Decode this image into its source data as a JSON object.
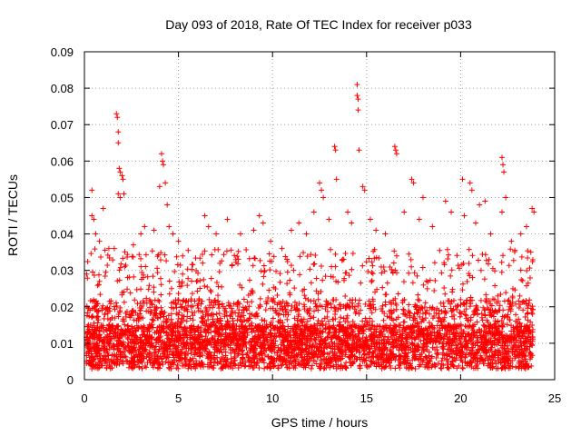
{
  "chart_data": {
    "type": "scatter",
    "title": "Day 093 of 2018, Rate Of TEC Index for receiver p033",
    "xlabel": "GPS time / hours",
    "ylabel": "ROTI / TECUs",
    "xlim": [
      0,
      25
    ],
    "ylim": [
      0,
      0.09
    ],
    "xticks": [
      0,
      5,
      10,
      15,
      20,
      25
    ],
    "xtick_labels": [
      "0",
      "5",
      "10",
      "15",
      "20",
      "25"
    ],
    "yticks": [
      0,
      0.01,
      0.02,
      0.03,
      0.04,
      0.05,
      0.06,
      0.07,
      0.08,
      0.09
    ],
    "ytick_labels": [
      "0",
      "0.01",
      "0.02",
      "0.03",
      "0.04",
      "0.05",
      "0.06",
      "0.07",
      "0.08",
      "0.09"
    ],
    "grid": true,
    "marker": "plus",
    "color": "#ff0000",
    "points": [
      [
        0.4,
        0.052
      ],
      [
        0.4,
        0.045
      ],
      [
        0.5,
        0.044
      ],
      [
        1.0,
        0.047
      ],
      [
        1.7,
        0.073
      ],
      [
        1.75,
        0.072
      ],
      [
        1.8,
        0.068
      ],
      [
        1.8,
        0.065
      ],
      [
        1.85,
        0.058
      ],
      [
        1.9,
        0.057
      ],
      [
        2.0,
        0.056
      ],
      [
        2.05,
        0.055
      ],
      [
        1.8,
        0.051
      ],
      [
        1.9,
        0.05
      ],
      [
        2.1,
        0.051
      ],
      [
        4.1,
        0.062
      ],
      [
        4.15,
        0.06
      ],
      [
        4.2,
        0.059
      ],
      [
        4.0,
        0.053
      ],
      [
        4.3,
        0.054
      ],
      [
        4.4,
        0.048
      ],
      [
        4.5,
        0.042
      ],
      [
        12.5,
        0.054
      ],
      [
        12.6,
        0.052
      ],
      [
        12.7,
        0.05
      ],
      [
        13.3,
        0.064
      ],
      [
        13.35,
        0.063
      ],
      [
        13.4,
        0.055
      ],
      [
        14.5,
        0.081
      ],
      [
        14.5,
        0.078
      ],
      [
        14.55,
        0.077
      ],
      [
        14.55,
        0.074
      ],
      [
        14.6,
        0.063
      ],
      [
        14.8,
        0.053
      ],
      [
        14.9,
        0.052
      ],
      [
        16.5,
        0.064
      ],
      [
        16.55,
        0.063
      ],
      [
        16.6,
        0.062
      ],
      [
        17.4,
        0.055
      ],
      [
        17.5,
        0.054
      ],
      [
        18.0,
        0.05
      ],
      [
        19.2,
        0.049
      ],
      [
        20.1,
        0.055
      ],
      [
        20.5,
        0.054
      ],
      [
        20.6,
        0.052
      ],
      [
        21.0,
        0.048
      ],
      [
        21.3,
        0.049
      ],
      [
        22.2,
        0.061
      ],
      [
        22.25,
        0.059
      ],
      [
        22.3,
        0.057
      ],
      [
        22.2,
        0.046
      ],
      [
        22.4,
        0.05
      ],
      [
        23.8,
        0.047
      ],
      [
        23.9,
        0.046
      ],
      [
        0.6,
        0.04
      ],
      [
        0.8,
        0.038
      ],
      [
        1.3,
        0.036
      ],
      [
        2.6,
        0.037
      ],
      [
        3.0,
        0.04
      ],
      [
        3.2,
        0.042
      ],
      [
        3.7,
        0.041
      ],
      [
        4.7,
        0.04
      ],
      [
        5.0,
        0.038
      ],
      [
        6.4,
        0.045
      ],
      [
        6.6,
        0.042
      ],
      [
        7.0,
        0.04
      ],
      [
        7.6,
        0.044
      ],
      [
        8.3,
        0.04
      ],
      [
        9.0,
        0.041
      ],
      [
        9.3,
        0.045
      ],
      [
        9.5,
        0.043
      ],
      [
        9.9,
        0.038
      ],
      [
        10.5,
        0.036
      ],
      [
        11.0,
        0.041
      ],
      [
        11.4,
        0.043
      ],
      [
        11.8,
        0.04
      ],
      [
        12.2,
        0.046
      ],
      [
        13.0,
        0.044
      ],
      [
        14.0,
        0.046
      ],
      [
        14.2,
        0.043
      ],
      [
        15.2,
        0.044
      ],
      [
        15.5,
        0.041
      ],
      [
        16.0,
        0.04
      ],
      [
        17.0,
        0.046
      ],
      [
        17.8,
        0.044
      ],
      [
        18.5,
        0.042
      ],
      [
        19.5,
        0.046
      ],
      [
        20.2,
        0.045
      ],
      [
        20.8,
        0.043
      ],
      [
        21.6,
        0.04
      ],
      [
        22.7,
        0.038
      ],
      [
        23.2,
        0.04
      ],
      [
        23.5,
        0.042
      ]
    ],
    "generated_cloud": {
      "x_range": [
        0.1,
        23.85
      ],
      "y_range": [
        0.002,
        0.036
      ],
      "count": 4500
    }
  }
}
